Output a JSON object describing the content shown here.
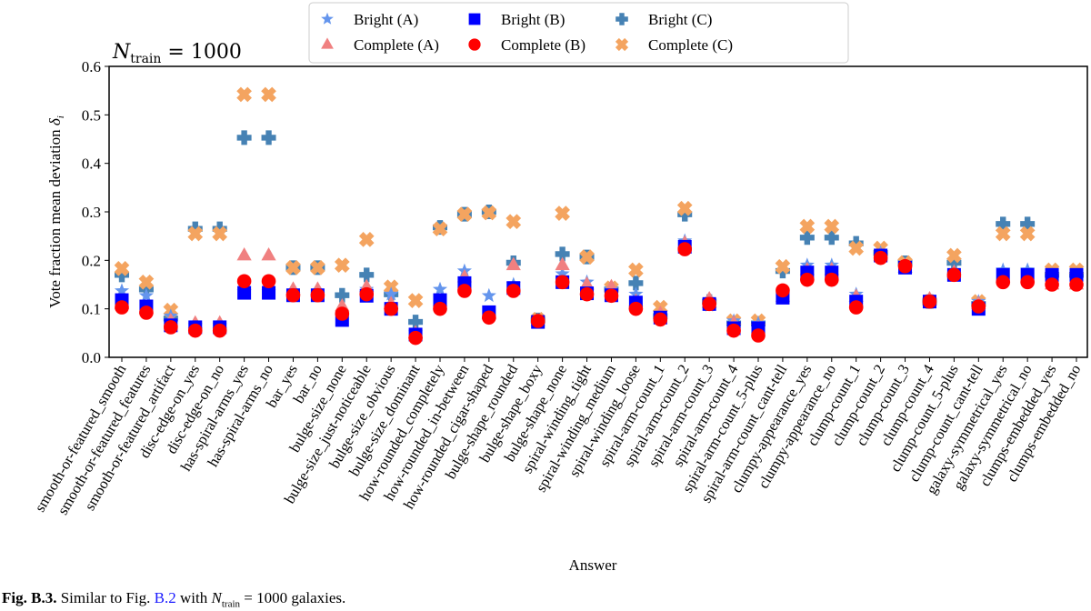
{
  "chart_data": {
    "type": "scatter",
    "title": "N_train = 1000",
    "title_parts": {
      "symbol": "N",
      "subscript": "train",
      "rest": " = 1000"
    },
    "xlabel": "Answer",
    "ylabel": "Vote fraction mean deviation δ_i",
    "ylabel_parts": {
      "text": "Vote fraction mean deviation ",
      "symbol": "δ",
      "subscript": "i"
    },
    "ylim": [
      0.0,
      0.6
    ],
    "yticks": [
      "0.0",
      "0.1",
      "0.2",
      "0.3",
      "0.4",
      "0.5",
      "0.6"
    ],
    "grid": false,
    "legend_position": "top-center",
    "categories": [
      "smooth-or-featured_smooth",
      "smooth-or-featured_features",
      "smooth-or-featured_artifact",
      "disc-edge-on_yes",
      "disc-edge-on_no",
      "has-spiral-arms_yes",
      "has-spiral-arms_no",
      "bar_yes",
      "bar_no",
      "bulge-size_none",
      "bulge-size_just-noticeable",
      "bulge-size_obvious",
      "bulge-size_dominant",
      "how-rounded_completely",
      "how-rounded_in-between",
      "how-rounded_cigar-shaped",
      "bulge-shape_rounded",
      "bulge-shape_boxy",
      "bulge-shape_none",
      "spiral-winding_tight",
      "spiral-winding_medium",
      "spiral-winding_loose",
      "spiral-arm-count_1",
      "spiral-arm-count_2",
      "spiral-arm-count_3",
      "spiral-arm-count_4",
      "spiral-arm-count_5-plus",
      "spiral-arm-count_cant-tell",
      "clumpy-appearance_yes",
      "clumpy-appearance_no",
      "clump-count_1",
      "clump-count_2",
      "clump-count_3",
      "clump-count_4",
      "clump-count_5-plus",
      "clump-count_cant-tell",
      "galaxy-symmetrical_yes",
      "galaxy-symmetrical_no",
      "clumps-embedded_yes",
      "clumps-embedded_no"
    ],
    "series": [
      {
        "name": "Bright (A)",
        "marker": "star",
        "color": "#6495ed",
        "values": [
          0.137,
          0.127,
          0.085,
          0.065,
          0.065,
          0.135,
          0.135,
          0.13,
          0.13,
          0.085,
          0.14,
          0.13,
          0.05,
          0.14,
          0.178,
          0.127,
          0.15,
          0.075,
          0.172,
          0.155,
          0.14,
          0.13,
          0.09,
          0.24,
          0.115,
          0.075,
          0.07,
          0.13,
          0.19,
          0.19,
          0.13,
          0.215,
          0.19,
          0.115,
          0.17,
          0.115,
          0.18,
          0.18,
          0.17,
          0.17
        ]
      },
      {
        "name": "Complete (A)",
        "marker": "triangle",
        "color": "#f08080",
        "values": [
          0.11,
          0.1,
          0.075,
          0.07,
          0.07,
          0.21,
          0.21,
          0.14,
          0.14,
          0.105,
          0.145,
          0.11,
          0.05,
          0.115,
          0.165,
          0.09,
          0.19,
          0.075,
          0.19,
          0.15,
          0.145,
          0.115,
          0.09,
          0.235,
          0.12,
          0.07,
          0.06,
          0.125,
          0.18,
          0.18,
          0.125,
          0.21,
          0.185,
          0.12,
          0.175,
          0.11,
          0.165,
          0.165,
          0.15,
          0.15
        ]
      },
      {
        "name": "Bright (B)",
        "marker": "square",
        "color": "#0000ff",
        "values": [
          0.118,
          0.105,
          0.066,
          0.062,
          0.062,
          0.133,
          0.133,
          0.128,
          0.128,
          0.077,
          0.127,
          0.1,
          0.047,
          0.118,
          0.153,
          0.093,
          0.143,
          0.073,
          0.155,
          0.132,
          0.128,
          0.113,
          0.082,
          0.228,
          0.11,
          0.06,
          0.06,
          0.123,
          0.175,
          0.175,
          0.115,
          0.21,
          0.185,
          0.115,
          0.17,
          0.1,
          0.17,
          0.17,
          0.17,
          0.17
        ]
      },
      {
        "name": "Complete (B)",
        "marker": "circle",
        "color": "#ff0000",
        "values": [
          0.103,
          0.092,
          0.062,
          0.055,
          0.055,
          0.157,
          0.157,
          0.128,
          0.128,
          0.09,
          0.13,
          0.1,
          0.04,
          0.1,
          0.137,
          0.082,
          0.137,
          0.075,
          0.155,
          0.13,
          0.127,
          0.1,
          0.078,
          0.223,
          0.11,
          0.055,
          0.045,
          0.138,
          0.16,
          0.16,
          0.103,
          0.205,
          0.188,
          0.115,
          0.17,
          0.105,
          0.155,
          0.155,
          0.15,
          0.15
        ]
      },
      {
        "name": "Bright (C)",
        "marker": "plus",
        "color": "#4682b4",
        "values": [
          0.17,
          0.14,
          0.08,
          0.265,
          0.265,
          0.453,
          0.453,
          0.185,
          0.185,
          0.128,
          0.17,
          0.13,
          0.073,
          0.268,
          0.295,
          0.3,
          0.195,
          0.077,
          0.213,
          0.207,
          0.14,
          0.153,
          0.085,
          0.295,
          0.115,
          0.07,
          0.07,
          0.178,
          0.247,
          0.247,
          0.235,
          0.215,
          0.195,
          0.115,
          0.195,
          0.11,
          0.275,
          0.275,
          0.17,
          0.17
        ]
      },
      {
        "name": "Complete (C)",
        "marker": "x",
        "color": "#f4a460",
        "values": [
          0.183,
          0.155,
          0.097,
          0.255,
          0.255,
          0.542,
          0.542,
          0.185,
          0.185,
          0.19,
          0.243,
          0.145,
          0.117,
          0.265,
          0.295,
          0.298,
          0.28,
          0.078,
          0.297,
          0.207,
          0.143,
          0.18,
          0.103,
          0.307,
          0.11,
          0.075,
          0.075,
          0.187,
          0.27,
          0.27,
          0.225,
          0.225,
          0.195,
          0.115,
          0.21,
          0.115,
          0.255,
          0.255,
          0.18,
          0.18
        ]
      }
    ]
  },
  "caption": {
    "label": "Fig. B.3.",
    "text_before_ref": " Similar to Fig. ",
    "ref": "B.2",
    "text_after_ref": " with ",
    "symbol": "N",
    "subscript": "train",
    "text_end": " = 1000 galaxies."
  }
}
